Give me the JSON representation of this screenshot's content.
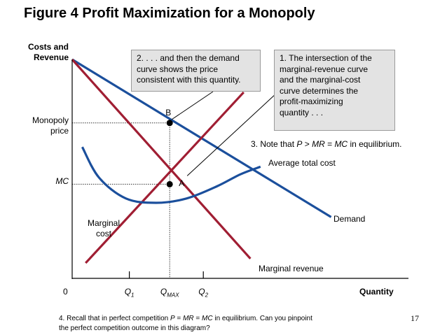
{
  "title": "Figure 4 Profit Maximization for a Monopoly",
  "page_number": "17",
  "notes": {
    "note1_lines": [
      "1. The intersection of the",
      "marginal-revenue curve",
      "and the marginal-cost",
      "curve determines the",
      "profit-maximizing",
      "quantity . . ."
    ],
    "note2_lines": [
      "2. . . . and then the demand",
      "curve shows the price",
      "consistent with this quantity."
    ],
    "note3_parts": [
      "3. Note that ",
      "P",
      " > ",
      "MR",
      " = ",
      "MC",
      " in equilibrium."
    ],
    "note4_parts": [
      "4. Recall that in perfect competition ",
      "P",
      " = ",
      "MR",
      " = ",
      "MC",
      " in equilibrium. Can you pinpoint"
    ],
    "note4_line2": "the perfect competition outcome in this diagram?"
  },
  "chart_data": {
    "type": "line",
    "title": "Figure 4 Profit Maximization for a Monopoly",
    "ylabel_lines": [
      "Costs and",
      "Revenue"
    ],
    "xlabel": "Quantity",
    "origin_label": "0",
    "xlim": [
      0,
      10
    ],
    "ylim": [
      0,
      10
    ],
    "y_ticks": [
      {
        "label_lines": [
          "Monopoly",
          "price"
        ],
        "value": 7.1
      },
      {
        "label_lines": [
          "MC"
        ],
        "value": 4.3
      }
    ],
    "x_ticks": [
      {
        "label": "Q",
        "sub": "1",
        "value": 1.7
      },
      {
        "label": "Q",
        "sub": "MAX",
        "value": 2.9
      },
      {
        "label": "Q",
        "sub": "2",
        "value": 3.9
      }
    ],
    "series": [
      {
        "name": "Demand",
        "label_lines": [
          "Demand"
        ],
        "color": "#1b4f9c",
        "x": [
          0,
          7.7
        ],
        "y": [
          10,
          2.8
        ]
      },
      {
        "name": "Marginal revenue",
        "label_lines": [
          "Marginal revenue"
        ],
        "color": "#a01e33",
        "x": [
          0,
          5.3
        ],
        "y": [
          10,
          0.9
        ]
      },
      {
        "name": "Marginal cost",
        "label_lines": [
          "Marginal",
          "cost"
        ],
        "color": "#a01e33",
        "x": [
          0.4,
          5.1
        ],
        "y": [
          0.7,
          8.5
        ]
      },
      {
        "name": "Average total cost",
        "label_lines": [
          "Average total cost"
        ],
        "color": "#1b4f9c",
        "x": [
          0.3,
          0.8,
          1.6,
          2.5,
          3.4,
          4.3,
          5.0,
          5.6
        ],
        "y": [
          6.0,
          4.6,
          3.65,
          3.45,
          3.65,
          4.2,
          4.75,
          5.1
        ]
      }
    ],
    "points": [
      {
        "label": "B",
        "x": 2.9,
        "y": 7.1
      },
      {
        "label": "A",
        "x": 2.9,
        "y": 4.3
      }
    ]
  }
}
